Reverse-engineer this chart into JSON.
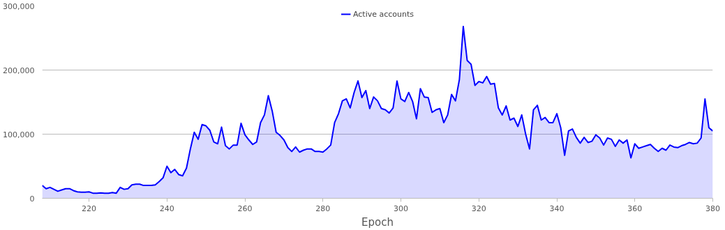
{
  "chart_data": {
    "type": "area",
    "xlabel": "Epoch",
    "legend": "top",
    "grid": "y",
    "xlim": [
      208,
      380
    ],
    "xticks": [
      220,
      240,
      260,
      280,
      300,
      320,
      340,
      360,
      380
    ],
    "ylim": [
      0,
      300000
    ],
    "yticks": [
      0,
      {
        "value": 100000,
        "label": "100,000"
      },
      {
        "value": 200000,
        "label": "200,000"
      },
      {
        "value": 300000,
        "label": "300,000"
      }
    ],
    "x": [
      208,
      209,
      210,
      211,
      212,
      213,
      214,
      215,
      216,
      217,
      218,
      219,
      220,
      221,
      222,
      223,
      224,
      225,
      226,
      227,
      228,
      229,
      230,
      231,
      232,
      233,
      234,
      235,
      236,
      237,
      238,
      239,
      240,
      241,
      242,
      243,
      244,
      245,
      246,
      247,
      248,
      249,
      250,
      251,
      252,
      253,
      254,
      255,
      256,
      257,
      258,
      259,
      260,
      261,
      262,
      263,
      264,
      265,
      266,
      267,
      268,
      269,
      270,
      271,
      272,
      273,
      274,
      275,
      276,
      277,
      278,
      279,
      280,
      281,
      282,
      283,
      284,
      285,
      286,
      287,
      288,
      289,
      290,
      291,
      292,
      293,
      294,
      295,
      296,
      297,
      298,
      299,
      300,
      301,
      302,
      303,
      304,
      305,
      306,
      307,
      308,
      309,
      310,
      311,
      312,
      313,
      314,
      315,
      316,
      317,
      318,
      319,
      320,
      321,
      322,
      323,
      324,
      325,
      326,
      327,
      328,
      329,
      330,
      331,
      332,
      333,
      334,
      335,
      336,
      337,
      338,
      339,
      340,
      341,
      342,
      343,
      344,
      345,
      346,
      347,
      348,
      349,
      350,
      351,
      352,
      353,
      354,
      355,
      356,
      357,
      358,
      359,
      360,
      361,
      362,
      363,
      364,
      365,
      366,
      367,
      368,
      369,
      370,
      371,
      372,
      373,
      374,
      375,
      376,
      377,
      378,
      379,
      380
    ],
    "series": [
      {
        "name": "Active accounts",
        "color": "#0000ff",
        "values": [
          20000,
          15000,
          17000,
          14000,
          11000,
          13000,
          15000,
          15000,
          12000,
          10000,
          9500,
          9500,
          10000,
          8000,
          8000,
          8500,
          8000,
          8000,
          9000,
          8000,
          17000,
          14000,
          15000,
          21000,
          22000,
          22000,
          20000,
          20000,
          20000,
          21000,
          26000,
          32000,
          50000,
          40000,
          45000,
          37000,
          35000,
          47000,
          77000,
          103000,
          92000,
          115000,
          113000,
          106000,
          88000,
          85000,
          111000,
          82000,
          77000,
          83000,
          83000,
          117000,
          99000,
          91000,
          84000,
          88000,
          118000,
          130000,
          160000,
          136000,
          103000,
          98000,
          91000,
          79000,
          73000,
          80000,
          72000,
          75000,
          77000,
          77000,
          73000,
          73000,
          72000,
          77000,
          83000,
          118000,
          132000,
          152000,
          155000,
          141000,
          165000,
          183000,
          157000,
          168000,
          140000,
          158000,
          152000,
          140000,
          138000,
          133000,
          141000,
          183000,
          155000,
          151000,
          165000,
          151000,
          124000,
          171000,
          158000,
          157000,
          134000,
          138000,
          140000,
          118000,
          130000,
          162000,
          152000,
          185000,
          268000,
          215000,
          209000,
          176000,
          182000,
          180000,
          190000,
          178000,
          179000,
          141000,
          130000,
          144000,
          122000,
          125000,
          112000,
          130000,
          100000,
          77000,
          138000,
          145000,
          122000,
          126000,
          118000,
          118000,
          132000,
          110000,
          67000,
          105000,
          108000,
          95000,
          86000,
          95000,
          87000,
          89000,
          99000,
          94000,
          83000,
          94000,
          92000,
          81000,
          91000,
          86000,
          91000,
          63000,
          85000,
          78000,
          80000,
          82000,
          84000,
          78000,
          73000,
          78000,
          75000,
          83000,
          80000,
          79000,
          82000,
          84000,
          87000,
          85000,
          86000,
          94000,
          155000,
          110000,
          105000
        ]
      }
    ]
  }
}
